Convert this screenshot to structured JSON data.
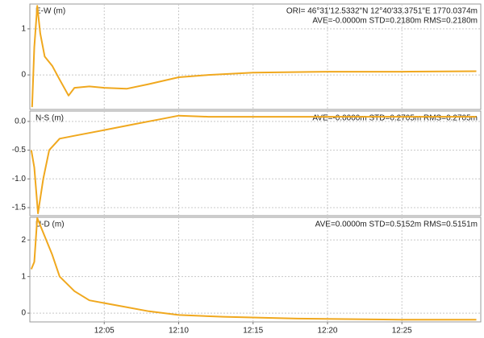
{
  "chart_data": [
    {
      "type": "line",
      "label": "E-W (m)",
      "annotations": [
        "ORI= 46°31'12.5332\"N  12°40'33.3751\"E 1770.0374m",
        "AVE=-0.0000m STD=0.2180m RMS=0.2180m"
      ],
      "color": "#f0a81e",
      "x": [
        720.15,
        720.3,
        720.5,
        720.7,
        721.0,
        721.5,
        722.0,
        722.6,
        723.0,
        724.0,
        725.0,
        726.5,
        728.0,
        730.0,
        732.0,
        735.0,
        740.0,
        745.0,
        750.0
      ],
      "values": [
        -0.7,
        0.6,
        1.5,
        0.9,
        0.4,
        0.2,
        -0.1,
        -0.45,
        -0.28,
        -0.25,
        -0.28,
        -0.3,
        -0.2,
        -0.05,
        0.0,
        0.05,
        0.07,
        0.07,
        0.08
      ],
      "xlim": [
        720,
        750.3
      ],
      "ylim": [
        -0.75,
        1.54
      ],
      "yticks": [
        0,
        1
      ],
      "grid": true
    },
    {
      "type": "line",
      "label": "N-S (m)",
      "annotations": [
        "AVE=-0.0000m STD=0.2705m RMS=0.2705m"
      ],
      "color": "#f0a81e",
      "x": [
        720.1,
        720.3,
        720.55,
        720.9,
        721.3,
        722.0,
        723.0,
        725.0,
        727.0,
        729.0,
        730.0,
        732.0,
        740.0,
        750.0
      ],
      "values": [
        -0.5,
        -0.8,
        -1.6,
        -1.0,
        -0.5,
        -0.3,
        -0.25,
        -0.15,
        -0.05,
        0.05,
        0.1,
        0.08,
        0.08,
        0.08
      ],
      "xlim": [
        720,
        750.3
      ],
      "ylim": [
        -1.64,
        0.18
      ],
      "yticks": [
        {
          "value": 0,
          "label": "0.0"
        },
        -0.5,
        {
          "value": -1,
          "label": "-1.0"
        },
        -1.5
      ],
      "grid": true
    },
    {
      "type": "line",
      "label": "U-D (m)",
      "annotations": [
        "AVE=0.0000m STD=0.5152m RMS=0.5151m"
      ],
      "color": "#f0a81e",
      "x": [
        720.1,
        720.3,
        720.5,
        720.9,
        721.5,
        722.0,
        723.0,
        724.0,
        726.0,
        728.0,
        730.0,
        733.0,
        738.0,
        745.0,
        750.0
      ],
      "values": [
        1.2,
        1.4,
        2.6,
        2.2,
        1.6,
        1.0,
        0.6,
        0.35,
        0.2,
        0.05,
        -0.05,
        -0.1,
        -0.15,
        -0.18,
        -0.18
      ],
      "xlim": [
        720,
        750.3
      ],
      "ylim": [
        -0.24,
        2.62
      ],
      "yticks": [
        0,
        1,
        2
      ],
      "xticks": [
        {
          "value": 725,
          "label": "12:05"
        },
        {
          "value": 730,
          "label": "12:10"
        },
        {
          "value": 735,
          "label": "12:15"
        },
        {
          "value": 740,
          "label": "12:20"
        },
        {
          "value": 745,
          "label": "12:25"
        }
      ],
      "grid": true
    }
  ]
}
